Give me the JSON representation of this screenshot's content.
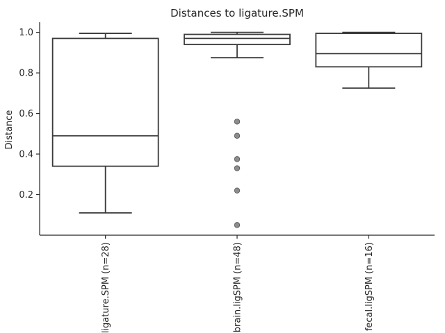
{
  "chart_data": {
    "type": "box",
    "title": "Distances to ligature.SPM",
    "xlabel": "",
    "ylabel": "Distance",
    "ylim": [
      0.0,
      1.05
    ],
    "yticks": [
      0.2,
      0.4,
      0.6,
      0.8,
      1.0
    ],
    "ytick_labels": [
      "0.2",
      "0.4",
      "0.6",
      "0.8",
      "1.0"
    ],
    "grid": false,
    "categories": [
      "ligature.SPM (n=28)",
      "brain.ligSPM (n=48)",
      "fecal.ligSPM (n=16)"
    ],
    "boxes": [
      {
        "label": "ligature.SPM (n=28)",
        "whisker_low": 0.11,
        "q1": 0.34,
        "median": 0.49,
        "q3": 0.97,
        "whisker_high": 0.995,
        "fliers": []
      },
      {
        "label": "brain.ligSPM (n=48)",
        "whisker_low": 0.875,
        "q1": 0.94,
        "median": 0.97,
        "q3": 0.99,
        "whisker_high": 1.0,
        "fliers": [
          0.56,
          0.49,
          0.375,
          0.33,
          0.22,
          0.05
        ]
      },
      {
        "label": "fecal.ligSPM (n=16)",
        "whisker_low": 0.725,
        "q1": 0.83,
        "median": 0.895,
        "q3": 0.995,
        "whisker_high": 1.0,
        "fliers": []
      }
    ]
  }
}
